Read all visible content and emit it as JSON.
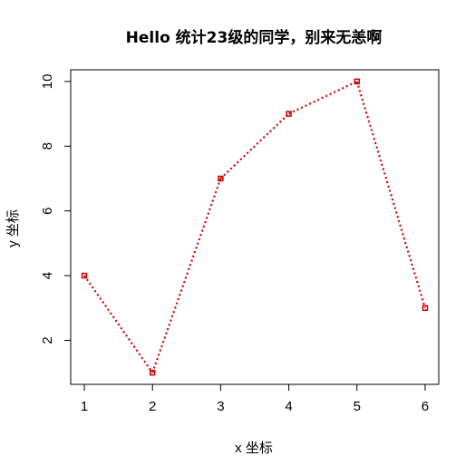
{
  "chart_data": {
    "type": "line",
    "title": "Hello 统计23级的同学，别来无恙啊",
    "xlabel": "x 坐标",
    "ylabel": "y 坐标",
    "x": [
      1,
      2,
      3,
      4,
      5,
      6
    ],
    "series": [
      {
        "values": [
          4,
          1,
          7,
          9,
          10,
          3
        ],
        "color": "#cc0000"
      }
    ],
    "xticks": [
      1,
      2,
      3,
      4,
      5,
      6
    ],
    "yticks": [
      2,
      4,
      6,
      8,
      10
    ],
    "xlim": [
      0.8,
      6.2
    ],
    "ylim": [
      0.64,
      10.36
    ],
    "line_style": "dotted",
    "marker": "square",
    "grid": false,
    "legend": "none"
  }
}
